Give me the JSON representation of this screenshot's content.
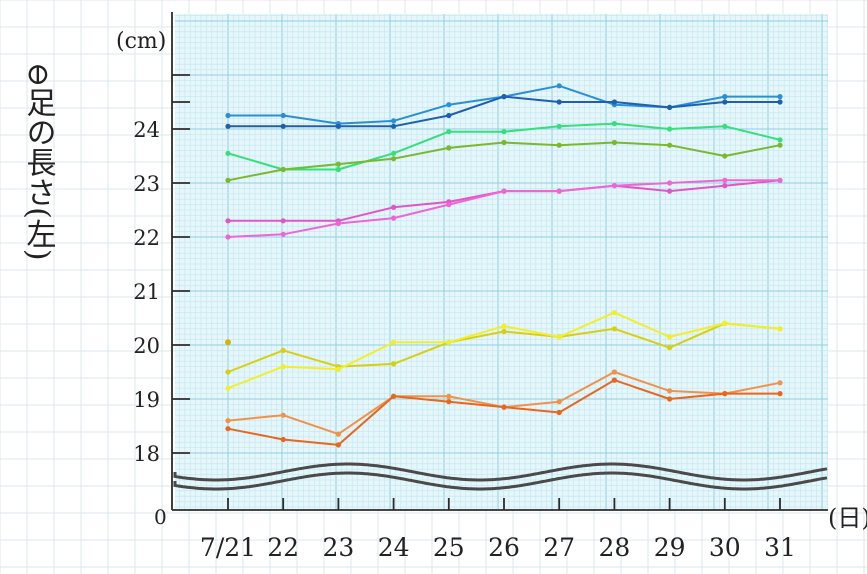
{
  "chart_data": {
    "type": "line",
    "title": "",
    "ylabel": "⊖足の長さ(左)",
    "y_unit": "(cm)",
    "x_unit": "(日)",
    "origin_label": "0",
    "categories": [
      "7/21",
      "22",
      "23",
      "24",
      "25",
      "26",
      "27",
      "28",
      "29",
      "30",
      "31"
    ],
    "y_ticks": [
      18,
      19,
      20,
      21,
      22,
      23,
      24
    ],
    "ylim": [
      18,
      25
    ],
    "axis_break": true,
    "grid": true,
    "legend": "none",
    "series": [
      {
        "color": "#2a8fd6",
        "values": [
          24.25,
          24.25,
          24.1,
          24.15,
          24.45,
          24.6,
          24.8,
          24.45,
          24.4,
          24.6,
          24.6
        ]
      },
      {
        "color": "#1f5fb0",
        "values": [
          24.05,
          24.05,
          24.05,
          24.05,
          24.25,
          24.6,
          24.5,
          24.5,
          24.4,
          24.5,
          24.5
        ]
      },
      {
        "color": "#33e07a",
        "values": [
          23.55,
          23.25,
          23.25,
          23.55,
          23.95,
          23.95,
          24.05,
          24.1,
          24.0,
          24.05,
          23.8
        ]
      },
      {
        "color": "#7ab82e",
        "values": [
          23.05,
          23.25,
          23.35,
          23.45,
          23.65,
          23.75,
          23.7,
          23.75,
          23.7,
          23.5,
          23.7
        ]
      },
      {
        "color": "#e255c8",
        "values": [
          22.3,
          22.3,
          22.3,
          22.55,
          22.65,
          22.85,
          22.85,
          22.95,
          22.85,
          22.95,
          23.05
        ]
      },
      {
        "color": "#ee66d6",
        "values": [
          22.0,
          22.05,
          22.25,
          22.35,
          22.6,
          22.85,
          22.85,
          22.95,
          23.0,
          23.05,
          23.05
        ]
      },
      {
        "color": "#d8cf10",
        "values": [
          19.5,
          19.9,
          19.6,
          19.65,
          20.05,
          20.25,
          20.15,
          20.3,
          19.95,
          20.4,
          20.3
        ]
      },
      {
        "color": "#f2ef2a",
        "values": [
          19.2,
          19.6,
          19.55,
          20.05,
          20.05,
          20.35,
          20.15,
          20.6,
          20.15,
          20.4,
          20.3
        ]
      },
      {
        "color": "#f0924a",
        "values": [
          18.6,
          18.7,
          18.35,
          19.05,
          19.05,
          18.85,
          18.95,
          19.5,
          19.15,
          19.1,
          19.3
        ]
      },
      {
        "color": "#e8661e",
        "values": [
          18.45,
          18.25,
          18.15,
          19.05,
          18.95,
          18.85,
          18.75,
          19.35,
          19.0,
          19.1,
          19.1
        ]
      }
    ],
    "stray_points": [
      {
        "x_index": 0,
        "y": 20.05,
        "color": "#d8b400"
      }
    ],
    "colors": {
      "paper": "#ffffff",
      "plot_bg": "#e6f6fa",
      "grid_minor": "#bfe8f0",
      "grid_major": "#8fd0e0",
      "outer_grid": "#dde7ee",
      "axis": "#2b2b2b",
      "break_line": "#4a4a4a"
    }
  }
}
